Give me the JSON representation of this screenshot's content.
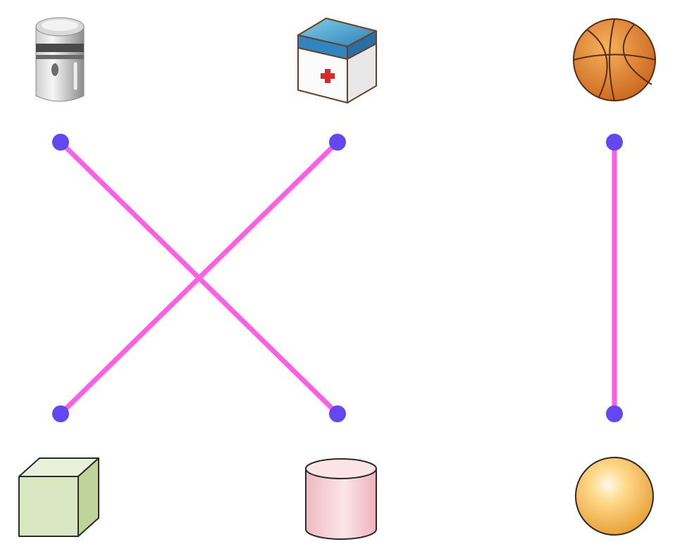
{
  "colors": {
    "background": "#ffffff",
    "line": "#ff5fe4",
    "dot": "#6347f2"
  },
  "top_row": [
    {
      "id": "t1",
      "icon": "thermos-icon"
    },
    {
      "id": "t2",
      "icon": "first-aid-box-icon"
    },
    {
      "id": "t3",
      "icon": "basketball-icon"
    }
  ],
  "bottom_row": [
    {
      "id": "b1",
      "icon": "cube-icon"
    },
    {
      "id": "b2",
      "icon": "cylinder-icon"
    },
    {
      "id": "b3",
      "icon": "sphere-icon"
    }
  ],
  "connections": [
    {
      "from": "t1",
      "to": "b2"
    },
    {
      "from": "t2",
      "to": "b1"
    },
    {
      "from": "t3",
      "to": "b3"
    }
  ]
}
